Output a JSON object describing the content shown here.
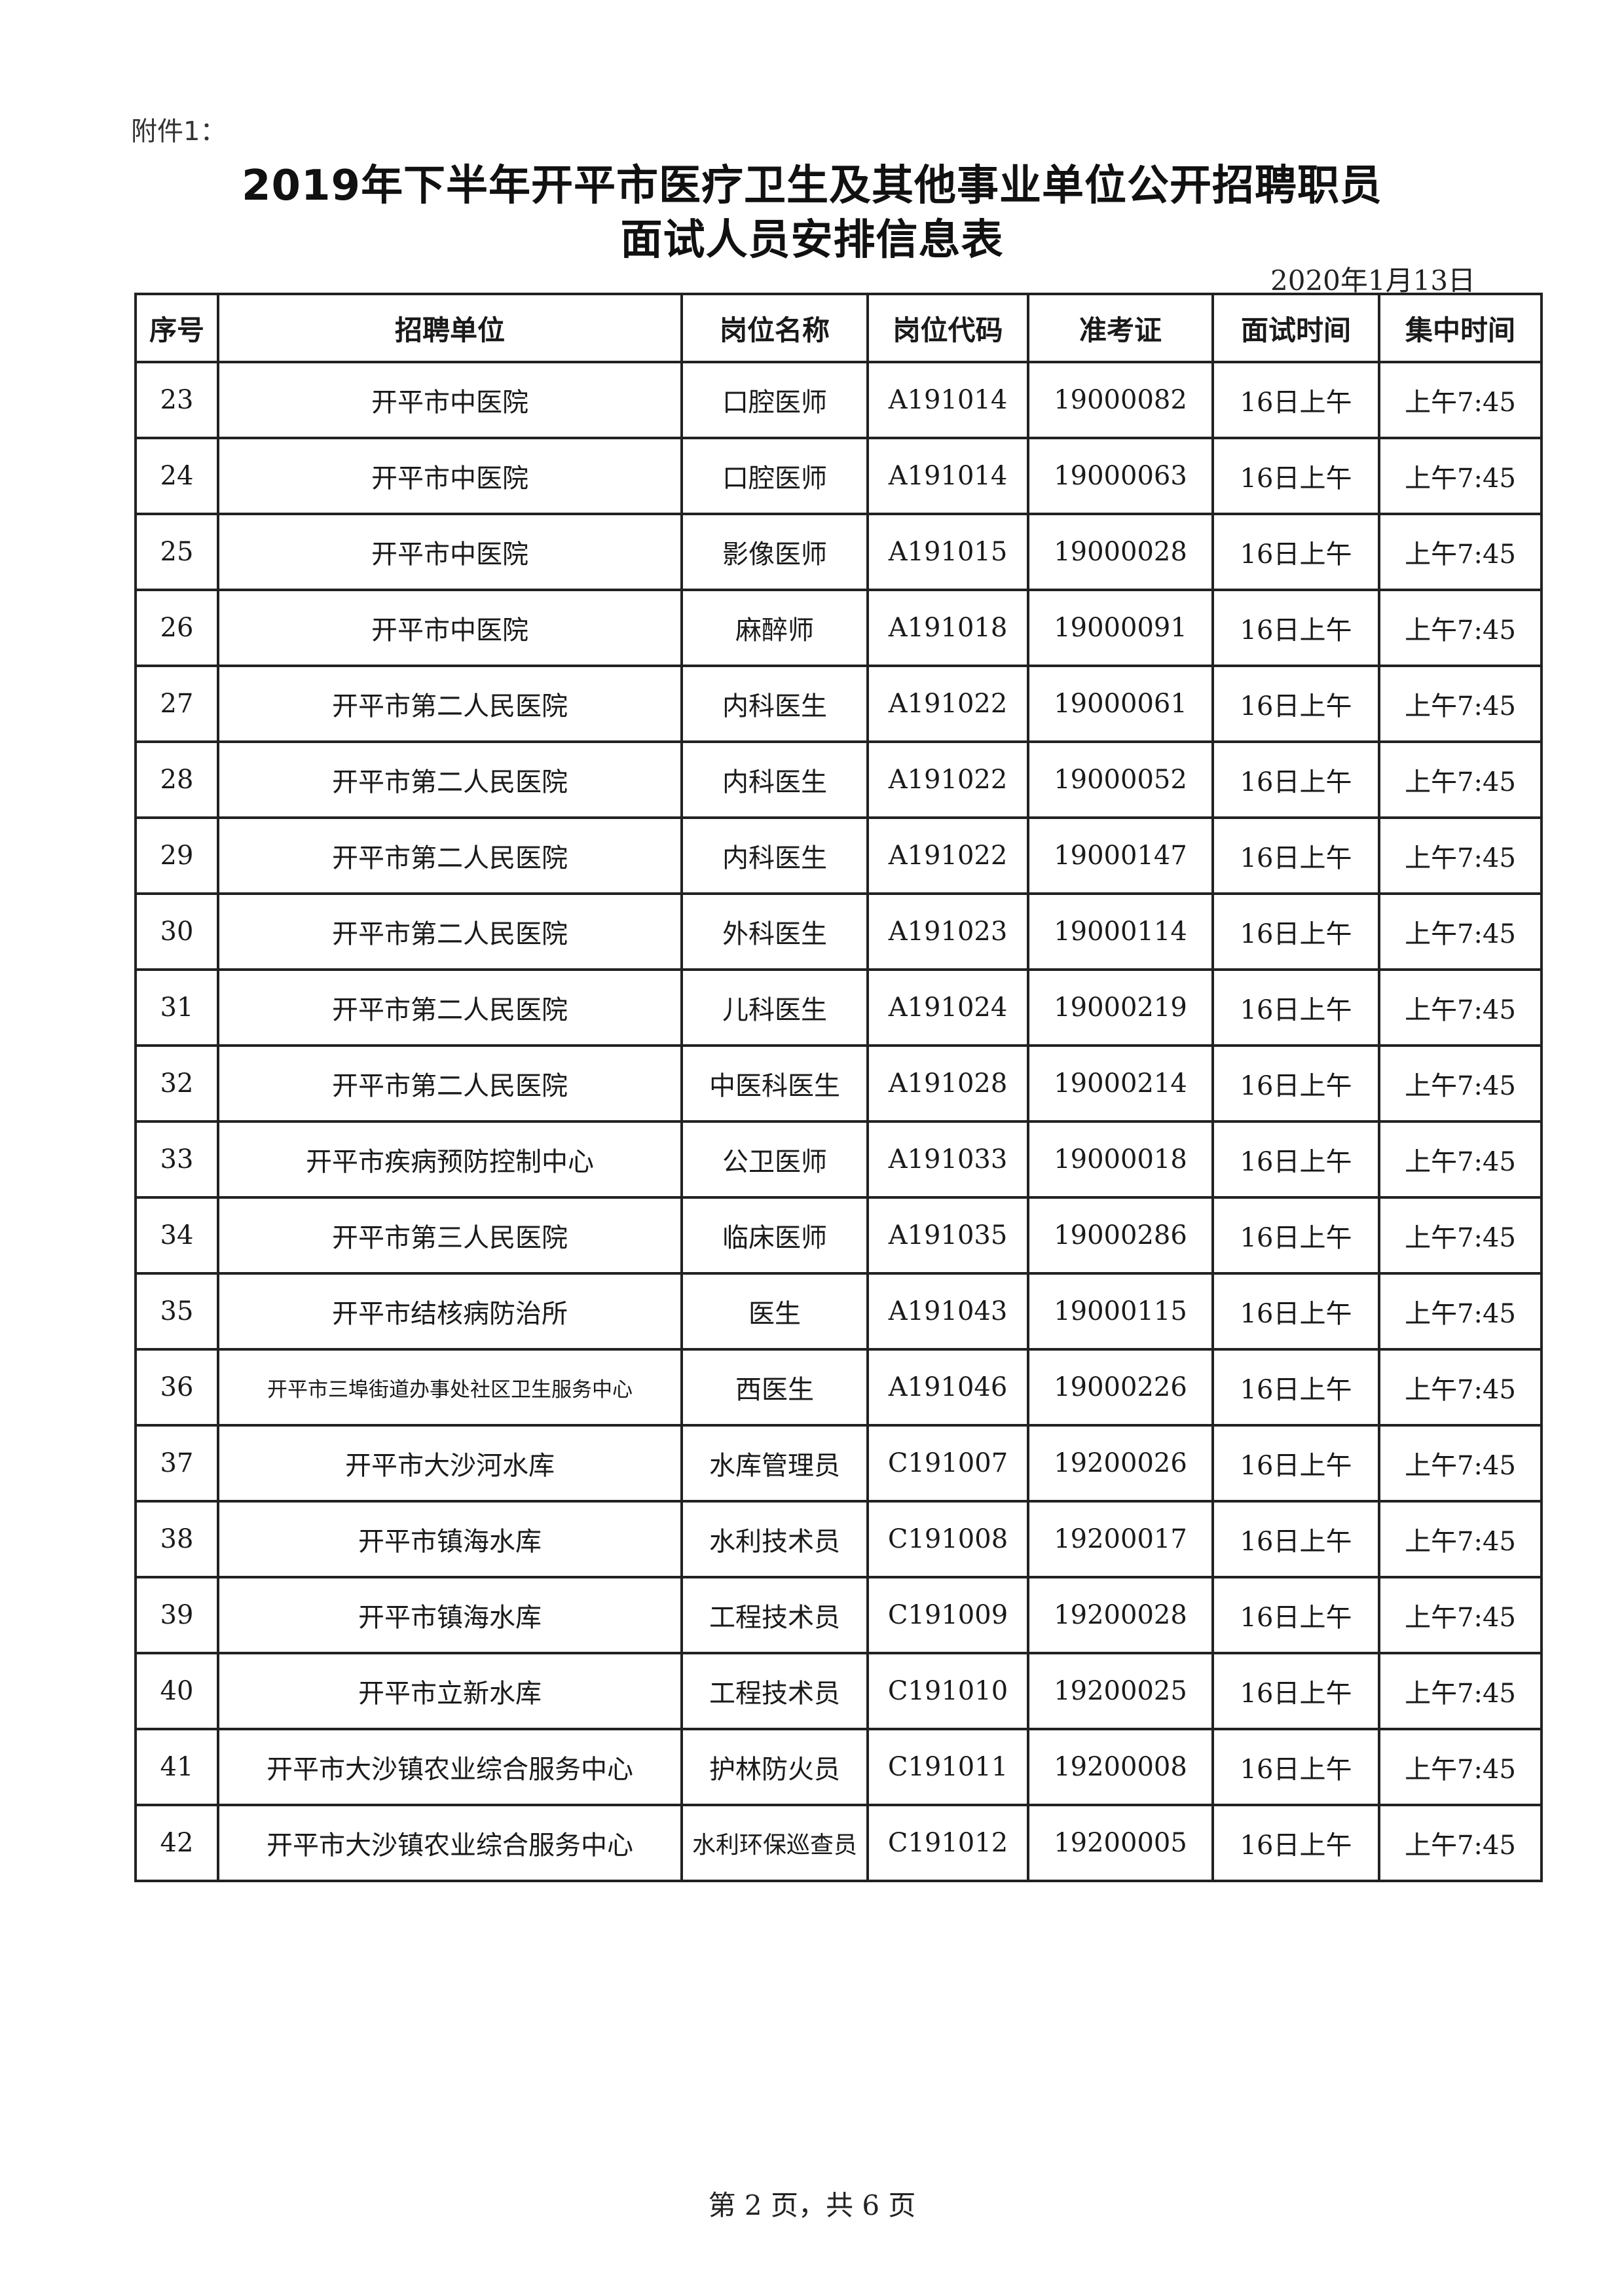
{
  "attachment_label": "附件1：",
  "title_line1": "2019年下半年开平市医疗卫生及其他事业单位公开招聘职员",
  "title_line2": "面试人员安排信息表",
  "date": "2020年1月13日",
  "table": {
    "headers": [
      "序号",
      "招聘单位",
      "岗位名称",
      "岗位代码",
      "准考证",
      "面试时间",
      "集中时间"
    ],
    "rows": [
      [
        "23",
        "开平市中医院",
        "口腔医师",
        "A191014",
        "19000082",
        "16日上午",
        "上午7:45"
      ],
      [
        "24",
        "开平市中医院",
        "口腔医师",
        "A191014",
        "19000063",
        "16日上午",
        "上午7:45"
      ],
      [
        "25",
        "开平市中医院",
        "影像医师",
        "A191015",
        "19000028",
        "16日上午",
        "上午7:45"
      ],
      [
        "26",
        "开平市中医院",
        "麻醉师",
        "A191018",
        "19000091",
        "16日上午",
        "上午7:45"
      ],
      [
        "27",
        "开平市第二人民医院",
        "内科医生",
        "A191022",
        "19000061",
        "16日上午",
        "上午7:45"
      ],
      [
        "28",
        "开平市第二人民医院",
        "内科医生",
        "A191022",
        "19000052",
        "16日上午",
        "上午7:45"
      ],
      [
        "29",
        "开平市第二人民医院",
        "内科医生",
        "A191022",
        "19000147",
        "16日上午",
        "上午7:45"
      ],
      [
        "30",
        "开平市第二人民医院",
        "外科医生",
        "A191023",
        "19000114",
        "16日上午",
        "上午7:45"
      ],
      [
        "31",
        "开平市第二人民医院",
        "儿科医生",
        "A191024",
        "19000219",
        "16日上午",
        "上午7:45"
      ],
      [
        "32",
        "开平市第二人民医院",
        "中医科医生",
        "A191028",
        "19000214",
        "16日上午",
        "上午7:45"
      ],
      [
        "33",
        "开平市疾病预防控制中心",
        "公卫医师",
        "A191033",
        "19000018",
        "16日上午",
        "上午7:45"
      ],
      [
        "34",
        "开平市第三人民医院",
        "临床医师",
        "A191035",
        "19000286",
        "16日上午",
        "上午7:45"
      ],
      [
        "35",
        "开平市结核病防治所",
        "医生",
        "A191043",
        "19000115",
        "16日上午",
        "上午7:45"
      ],
      [
        "36",
        "开平市三埠街道办事处社区卫生服务中心",
        "西医生",
        "A191046",
        "19000226",
        "16日上午",
        "上午7:45"
      ],
      [
        "37",
        "开平市大沙河水库",
        "水库管理员",
        "C191007",
        "19200026",
        "16日上午",
        "上午7:45"
      ],
      [
        "38",
        "开平市镇海水库",
        "水利技术员",
        "C191008",
        "19200017",
        "16日上午",
        "上午7:45"
      ],
      [
        "39",
        "开平市镇海水库",
        "工程技术员",
        "C191009",
        "19200028",
        "16日上午",
        "上午7:45"
      ],
      [
        "40",
        "开平市立新水库",
        "工程技术员",
        "C191010",
        "19200025",
        "16日上午",
        "上午7:45"
      ],
      [
        "41",
        "开平市大沙镇农业综合服务中心",
        "护林防火员",
        "C191011",
        "19200008",
        "16日上午",
        "上午7:45"
      ],
      [
        "42",
        "开平市大沙镇农业综合服务中心",
        "水利环保巡查员",
        "C191012",
        "19200005",
        "16日上午",
        "上午7:45"
      ]
    ]
  },
  "footer": "第 2 页，共 6 页"
}
